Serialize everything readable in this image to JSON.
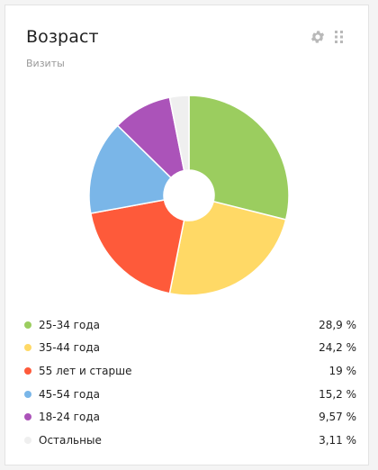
{
  "widget": {
    "title": "Возраст",
    "subtitle": "Визиты",
    "icons": {
      "settings": "gear-icon",
      "drag": "drag-handle-icon"
    }
  },
  "chart_data": {
    "type": "pie",
    "donut": true,
    "categories": [
      "25-34 года",
      "35-44 года",
      "55 лет и старше",
      "45-54 года",
      "18-24 года",
      "Остальные"
    ],
    "values": [
      28.9,
      24.2,
      19,
      15.2,
      9.57,
      3.11
    ],
    "colors": [
      "#9bcd5f",
      "#ffd966",
      "#fe5a3a",
      "#7ab6e8",
      "#ab53b9",
      "#efefef"
    ]
  },
  "legend": [
    {
      "label": "25-34 года",
      "value": "28,9 %",
      "color": "#9bcd5f"
    },
    {
      "label": "35-44 года",
      "value": "24,2 %",
      "color": "#ffd966"
    },
    {
      "label": "55 лет и старше",
      "value": "19 %",
      "color": "#fe5a3a"
    },
    {
      "label": "45-54 года",
      "value": "15,2 %",
      "color": "#7ab6e8"
    },
    {
      "label": "18-24 года",
      "value": "9,57 %",
      "color": "#ab53b9"
    },
    {
      "label": "Остальные",
      "value": "3,11 %",
      "color": "#efefef"
    }
  ]
}
